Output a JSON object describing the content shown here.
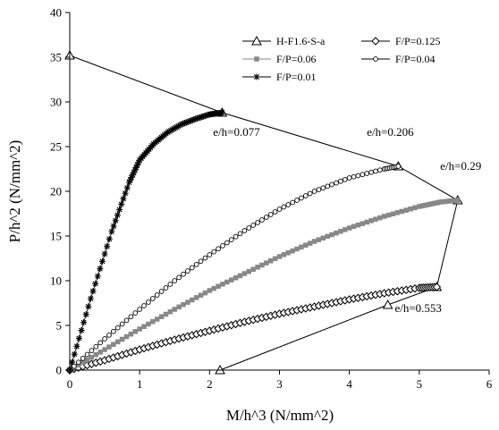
{
  "chart_data": {
    "type": "line",
    "xlabel": "M/h^3 (N/mm^2)",
    "ylabel": "P/h^2 (N/mm^2)",
    "xlim": [
      0,
      6
    ],
    "ylim": [
      0,
      40
    ],
    "xticks": [
      "0",
      "1",
      "2",
      "3",
      "4",
      "5",
      "6"
    ],
    "yticks": [
      "0",
      "5",
      "10",
      "15",
      "20",
      "25",
      "30",
      "35",
      "40"
    ],
    "grid": false,
    "legend_position": "top-right",
    "series": [
      {
        "name": "H-F1.6-S-a",
        "marker": "triangle",
        "color": "#000000",
        "x": [
          0,
          2.18,
          4.7,
          5.55,
          5.25,
          4.55,
          2.15
        ],
        "y": [
          35.2,
          28.8,
          22.8,
          19.0,
          9.3,
          7.3,
          0
        ]
      },
      {
        "name": "F/P=0.125",
        "marker": "diamond",
        "color": "#000000",
        "x": [
          0,
          0.5,
          1,
          1.5,
          2,
          2.5,
          3,
          3.5,
          4,
          4.5,
          5,
          5.25
        ],
        "y": [
          0,
          1.1,
          2.3,
          3.4,
          4.4,
          5.4,
          6.3,
          7.1,
          7.9,
          8.6,
          9.2,
          9.3
        ]
      },
      {
        "name": "F/P=0.06",
        "marker": "square",
        "color": "#888888",
        "x": [
          0,
          0.5,
          1,
          1.5,
          2,
          2.5,
          3,
          3.5,
          4,
          4.5,
          5,
          5.3,
          5.55
        ],
        "y": [
          0,
          2.3,
          4.6,
          6.8,
          8.9,
          10.8,
          12.7,
          14.4,
          15.9,
          17.2,
          18.3,
          18.8,
          19.0
        ]
      },
      {
        "name": "F/P=0.04",
        "marker": "circle",
        "color": "#000000",
        "x": [
          0,
          0.5,
          1,
          1.5,
          2,
          2.5,
          3,
          3.5,
          4,
          4.5,
          4.7
        ],
        "y": [
          0,
          3.5,
          6.8,
          10.0,
          12.9,
          15.6,
          18.0,
          20.0,
          21.5,
          22.5,
          22.8
        ]
      },
      {
        "name": "F/P=0.01",
        "marker": "star",
        "color": "#000000",
        "x": [
          0,
          0.3,
          0.6,
          0.85,
          1.0,
          1.2,
          1.4,
          1.6,
          1.8,
          2.0,
          2.18
        ],
        "y": [
          0,
          8,
          15.5,
          21.0,
          23.5,
          25.3,
          26.6,
          27.5,
          28.1,
          28.6,
          28.8
        ]
      }
    ],
    "annotations": [
      {
        "text": "e/h=0.077",
        "x": 2.05,
        "y": 26.2
      },
      {
        "text": "e/h=0.206",
        "x": 4.25,
        "y": 26.2
      },
      {
        "text": "e/h=0.29",
        "x": 5.3,
        "y": 22.4
      },
      {
        "text": "e/h=0.553",
        "x": 4.65,
        "y": 6.5
      }
    ],
    "lower_dotted_line": {
      "x": [
        2.15,
        4.55
      ],
      "y": [
        0,
        7.3
      ]
    }
  }
}
